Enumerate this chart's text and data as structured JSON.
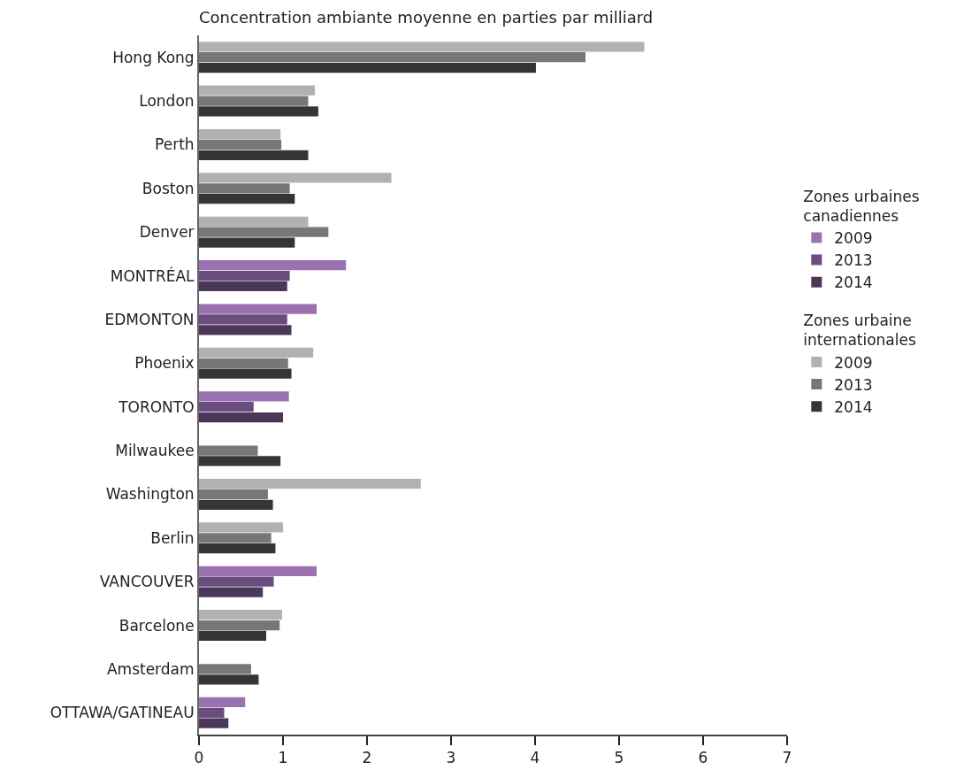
{
  "chart_data": {
    "type": "bar",
    "orientation": "horizontal",
    "title": "Concentration ambiante moyenne en parties par milliard",
    "categories": [
      "Hong Kong",
      "London",
      "Perth",
      "Boston",
      "Denver",
      "MONTRÉAL",
      "EDMONTON",
      "Phoenix",
      "TORONTO",
      "Milwaukee",
      "Washington",
      "Berlin",
      "VANCOUVER",
      "Barcelone",
      "Amsterdam",
      "OTTAWA/GATINEAU"
    ],
    "series": [
      {
        "name": "2009",
        "color": "#9b72b0",
        "values": [
          null,
          null,
          null,
          null,
          null,
          1.75,
          1.4,
          null,
          1.07,
          null,
          null,
          null,
          1.4,
          null,
          null,
          0.55
        ]
      },
      {
        "name": "2013",
        "color": "#6a4c7f",
        "values": [
          null,
          null,
          null,
          null,
          null,
          1.08,
          1.05,
          null,
          0.65,
          null,
          null,
          null,
          0.89,
          null,
          null,
          0.3
        ]
      },
      {
        "name": "2014",
        "color": "#4b3859",
        "values": [
          null,
          null,
          null,
          null,
          null,
          1.05,
          1.1,
          null,
          1.0,
          null,
          null,
          null,
          0.76,
          null,
          null,
          0.35
        ]
      },
      {
        "name": "2009",
        "color": "#b0b2b0",
        "values": [
          5.3,
          1.38,
          0.97,
          2.29,
          1.3,
          null,
          null,
          1.36,
          null,
          null,
          2.64,
          1.0,
          null,
          0.99,
          null,
          null
        ]
      },
      {
        "name": "2013",
        "color": "#767876",
        "values": [
          4.6,
          1.3,
          0.98,
          1.08,
          1.54,
          null,
          null,
          1.06,
          null,
          0.7,
          0.82,
          0.86,
          null,
          0.96,
          0.62,
          null
        ]
      },
      {
        "name": "2014",
        "color": "#353535",
        "values": [
          4.01,
          1.42,
          1.3,
          1.14,
          1.14,
          null,
          null,
          1.1,
          null,
          0.97,
          0.88,
          0.91,
          null,
          0.8,
          0.71,
          null
        ]
      }
    ],
    "annotations": [
      "Zones urbaines\ncanadiennes",
      "Zones urbaine\ninternationales"
    ],
    "xlim": [
      0,
      7
    ],
    "xticks": [
      0,
      1,
      2,
      3,
      4,
      5,
      6,
      7
    ],
    "grid": false,
    "legend": "right"
  }
}
